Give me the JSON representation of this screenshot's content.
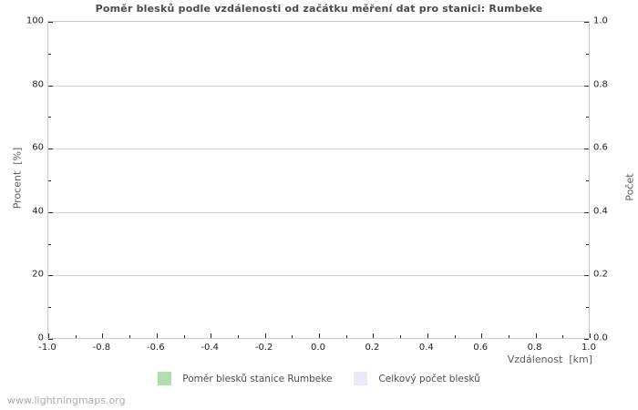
{
  "watermark": "www.lightningmaps.org",
  "chart_data": {
    "type": "line",
    "title": "Poměr blesků podle vzdálenosti od začátku měření dat pro stanici: Rumbeke",
    "xlabel": "Vzdálenost  [km]",
    "ylabel_left": "Procent  [%]",
    "ylabel_right": "Počet",
    "xlim": [
      -1.0,
      1.0
    ],
    "ylim_left": [
      0,
      100
    ],
    "ylim_right": [
      0.0,
      1.0
    ],
    "x_major_ticks": [
      -1.0,
      -0.8,
      -0.6,
      -0.4,
      -0.2,
      0.0,
      0.2,
      0.4,
      0.6,
      0.8,
      1.0
    ],
    "x_tick_labels": [
      "-1.0",
      "-0.8",
      "-0.6",
      "-0.4",
      "-0.2",
      "0.0",
      "0.2",
      "0.4",
      "0.6",
      "0.8",
      "1.0"
    ],
    "x_minor_step": 0.1,
    "y_left_major_ticks": [
      0,
      20,
      40,
      60,
      80,
      100
    ],
    "y_left_tick_labels": [
      "0",
      "20",
      "40",
      "60",
      "80",
      "100"
    ],
    "y_left_minor_step": 10,
    "y_right_major_ticks": [
      0.0,
      0.2,
      0.4,
      0.6,
      0.8,
      1.0
    ],
    "y_right_tick_labels": [
      "0.0",
      "0.2",
      "0.4",
      "0.6",
      "0.8",
      "1.0"
    ],
    "grid": "horizontal-major-only",
    "legend_position": "bottom-center",
    "legend": [
      {
        "label": "Poměr blesků stanice Rumbeke",
        "color": "#b3dcb3"
      },
      {
        "label": "Celkový počet blesků",
        "color": "#eaeafa"
      }
    ],
    "series": [
      {
        "name": "Poměr blesků stanice Rumbeke",
        "x": [],
        "y": []
      },
      {
        "name": "Celkový počet blesků",
        "x": [],
        "y": []
      }
    ],
    "colors": {
      "plot_border": "#c6c6c6",
      "gridline": "#d2d2d2",
      "tick_mark": "#2a2a2a",
      "title_text": "#4a4a4a",
      "axis_label_text": "#5a5a5a",
      "tick_label_text": "#1f1f1f",
      "watermark_text": "#adadad",
      "background": "#ffffff"
    }
  }
}
